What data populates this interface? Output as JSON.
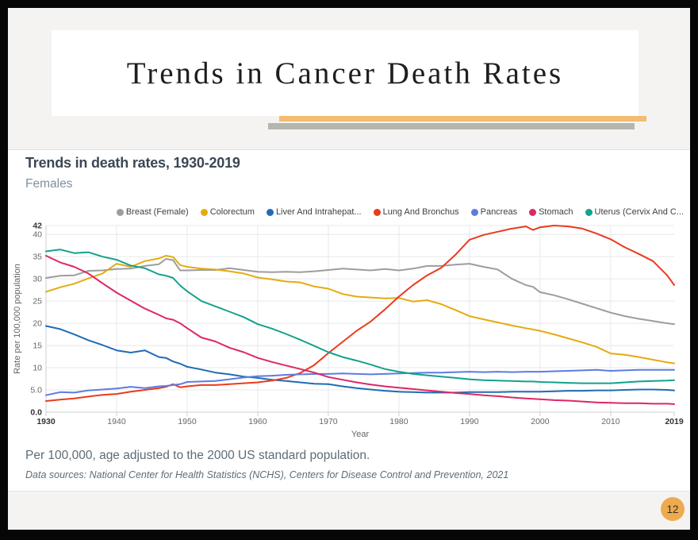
{
  "slide_title": "Trends in Cancer Death Rates",
  "page_number": "12",
  "colors": {
    "accent_orange": "#f2bc72",
    "accent_olive": "#b4b7ab",
    "badge_orange": "#edaa4f",
    "panel_bg": "#ffffff",
    "slide_bg": "#f4f3f1"
  },
  "chart": {
    "title": "Trends in death rates, 1930-2019",
    "subtitle": "Females",
    "footnote": "Per 100,000, age adjusted to the 2000 US standard population.",
    "source": "Data sources: National Center for Health Statistics (NCHS), Centers for Disease Control and Prevention, 2021"
  },
  "chart_data": {
    "type": "line",
    "title": "Trends in death rates, 1930-2019",
    "subtitle": "Females",
    "xlabel": "Year",
    "ylabel": "Rate per 100,000 population",
    "xlim": [
      1930,
      2019
    ],
    "ylim": [
      0,
      42
    ],
    "grid": true,
    "legend_position": "top",
    "y_ticks": [
      {
        "value": 0,
        "label": "0.0",
        "bold": true
      },
      {
        "value": 5,
        "label": "5.0",
        "bold": false
      },
      {
        "value": 10,
        "label": "10",
        "bold": false
      },
      {
        "value": 15,
        "label": "15",
        "bold": false
      },
      {
        "value": 20,
        "label": "20",
        "bold": false
      },
      {
        "value": 25,
        "label": "25",
        "bold": false
      },
      {
        "value": 30,
        "label": "30",
        "bold": false
      },
      {
        "value": 35,
        "label": "35",
        "bold": false
      },
      {
        "value": 40,
        "label": "40",
        "bold": false
      },
      {
        "value": 42,
        "label": "42",
        "bold": true
      }
    ],
    "x_ticks": [
      {
        "value": 1930,
        "label": "1930",
        "bold": true
      },
      {
        "value": 1940,
        "label": "1940",
        "bold": false
      },
      {
        "value": 1950,
        "label": "1950",
        "bold": false
      },
      {
        "value": 1960,
        "label": "1960",
        "bold": false
      },
      {
        "value": 1970,
        "label": "1970",
        "bold": false
      },
      {
        "value": 1980,
        "label": "1980",
        "bold": false
      },
      {
        "value": 1990,
        "label": "1990",
        "bold": false
      },
      {
        "value": 2000,
        "label": "2000",
        "bold": false
      },
      {
        "value": 2010,
        "label": "2010",
        "bold": false
      },
      {
        "value": 2019,
        "label": "2019",
        "bold": true
      }
    ],
    "x": [
      1930,
      1932,
      1934,
      1936,
      1938,
      1940,
      1942,
      1944,
      1946,
      1947,
      1948,
      1949,
      1950,
      1952,
      1954,
      1956,
      1958,
      1960,
      1962,
      1964,
      1966,
      1968,
      1970,
      1972,
      1974,
      1976,
      1978,
      1980,
      1982,
      1984,
      1986,
      1988,
      1990,
      1992,
      1994,
      1996,
      1998,
      1999,
      2000,
      2002,
      2004,
      2006,
      2008,
      2010,
      2012,
      2014,
      2016,
      2018,
      2019
    ],
    "series": [
      {
        "name": "Breast (Female)",
        "color": "#9d9d9d",
        "values": [
          30.2,
          30.7,
          30.8,
          31.8,
          31.9,
          32.2,
          32.3,
          32.9,
          33.3,
          34.5,
          34.2,
          31.9,
          31.9,
          32.0,
          32.0,
          32.4,
          32.0,
          31.6,
          31.5,
          31.6,
          31.5,
          31.7,
          32.0,
          32.3,
          32.1,
          31.9,
          32.2,
          31.9,
          32.3,
          32.9,
          32.9,
          33.2,
          33.4,
          32.7,
          32.1,
          30.0,
          28.6,
          28.2,
          27.0,
          26.3,
          25.4,
          24.4,
          23.4,
          22.4,
          21.6,
          21.0,
          20.5,
          20.0,
          19.8
        ]
      },
      {
        "name": "Colorectum",
        "color": "#e4ab10",
        "values": [
          27.1,
          28.1,
          28.9,
          30.1,
          31.2,
          33.4,
          32.7,
          34.0,
          34.6,
          35.2,
          34.9,
          33.1,
          32.7,
          32.3,
          32.1,
          31.7,
          31.2,
          30.3,
          29.9,
          29.4,
          29.2,
          28.3,
          27.8,
          26.6,
          26.0,
          25.8,
          25.6,
          25.7,
          24.9,
          25.2,
          24.3,
          23.0,
          21.6,
          20.9,
          20.2,
          19.5,
          18.9,
          18.6,
          18.3,
          17.5,
          16.6,
          15.7,
          14.7,
          13.2,
          12.9,
          12.4,
          11.8,
          11.2,
          11.0
        ]
      },
      {
        "name": "Liver And Intrahepat...",
        "color": "#1f6cb4",
        "values": [
          19.4,
          18.7,
          17.5,
          16.2,
          15.1,
          13.9,
          13.4,
          13.9,
          12.4,
          12.2,
          11.4,
          10.9,
          10.2,
          9.6,
          8.9,
          8.5,
          8.0,
          7.7,
          7.3,
          7.0,
          6.7,
          6.4,
          6.3,
          5.8,
          5.4,
          5.1,
          4.8,
          4.6,
          4.5,
          4.4,
          4.4,
          4.4,
          4.5,
          4.5,
          4.5,
          4.6,
          4.6,
          4.6,
          4.6,
          4.7,
          4.8,
          4.8,
          4.9,
          4.9,
          5.0,
          5.1,
          5.1,
          5.0,
          4.9
        ]
      },
      {
        "name": "Lung And Bronchus",
        "color": "#eb3a1e",
        "values": [
          2.5,
          2.8,
          3.1,
          3.5,
          3.9,
          4.1,
          4.6,
          5.0,
          5.4,
          5.7,
          6.3,
          5.6,
          5.8,
          6.1,
          6.1,
          6.3,
          6.5,
          6.7,
          7.1,
          7.7,
          8.8,
          10.6,
          13.3,
          15.8,
          18.3,
          20.4,
          23.1,
          26.0,
          28.6,
          30.8,
          32.5,
          35.4,
          38.8,
          39.9,
          40.6,
          41.3,
          41.8,
          41.0,
          41.6,
          42.0,
          41.8,
          41.3,
          40.2,
          38.9,
          37.1,
          35.6,
          34.0,
          30.8,
          28.6
        ]
      },
      {
        "name": "Pancreas",
        "color": "#5d7ce2",
        "values": [
          3.8,
          4.5,
          4.4,
          4.9,
          5.1,
          5.3,
          5.7,
          5.4,
          5.8,
          5.9,
          6.1,
          6.3,
          6.8,
          6.9,
          7.0,
          7.4,
          7.8,
          8.1,
          8.2,
          8.4,
          8.5,
          8.6,
          8.6,
          8.7,
          8.6,
          8.5,
          8.6,
          8.7,
          8.8,
          8.9,
          8.9,
          9.0,
          9.1,
          9.0,
          9.1,
          9.0,
          9.1,
          9.1,
          9.1,
          9.2,
          9.3,
          9.4,
          9.5,
          9.3,
          9.4,
          9.5,
          9.5,
          9.5,
          9.5
        ]
      },
      {
        "name": "Stomach",
        "color": "#de2765",
        "values": [
          35.2,
          33.7,
          32.7,
          31.2,
          29.0,
          26.9,
          25.1,
          23.3,
          21.9,
          21.1,
          20.8,
          20.0,
          18.9,
          16.8,
          15.9,
          14.5,
          13.5,
          12.2,
          11.3,
          10.5,
          9.7,
          8.9,
          7.9,
          7.3,
          6.7,
          6.2,
          5.8,
          5.5,
          5.2,
          4.9,
          4.6,
          4.3,
          4.1,
          3.8,
          3.6,
          3.3,
          3.1,
          3.0,
          2.9,
          2.7,
          2.6,
          2.4,
          2.2,
          2.1,
          2.0,
          2.0,
          1.9,
          1.9,
          1.8
        ]
      },
      {
        "name": "Uterus (Cervix And C...",
        "color": "#14a18e",
        "values": [
          36.2,
          36.6,
          35.8,
          36.0,
          35.0,
          34.3,
          33.0,
          32.4,
          31.0,
          30.7,
          30.2,
          28.5,
          27.2,
          25.0,
          23.8,
          22.6,
          21.4,
          19.8,
          18.8,
          17.6,
          16.3,
          14.9,
          13.5,
          12.4,
          11.6,
          10.7,
          9.7,
          9.1,
          8.6,
          8.3,
          8.0,
          7.7,
          7.4,
          7.2,
          7.1,
          7.0,
          6.9,
          6.9,
          6.8,
          6.7,
          6.6,
          6.5,
          6.5,
          6.5,
          6.7,
          6.9,
          7.0,
          7.1,
          7.2
        ]
      }
    ]
  }
}
